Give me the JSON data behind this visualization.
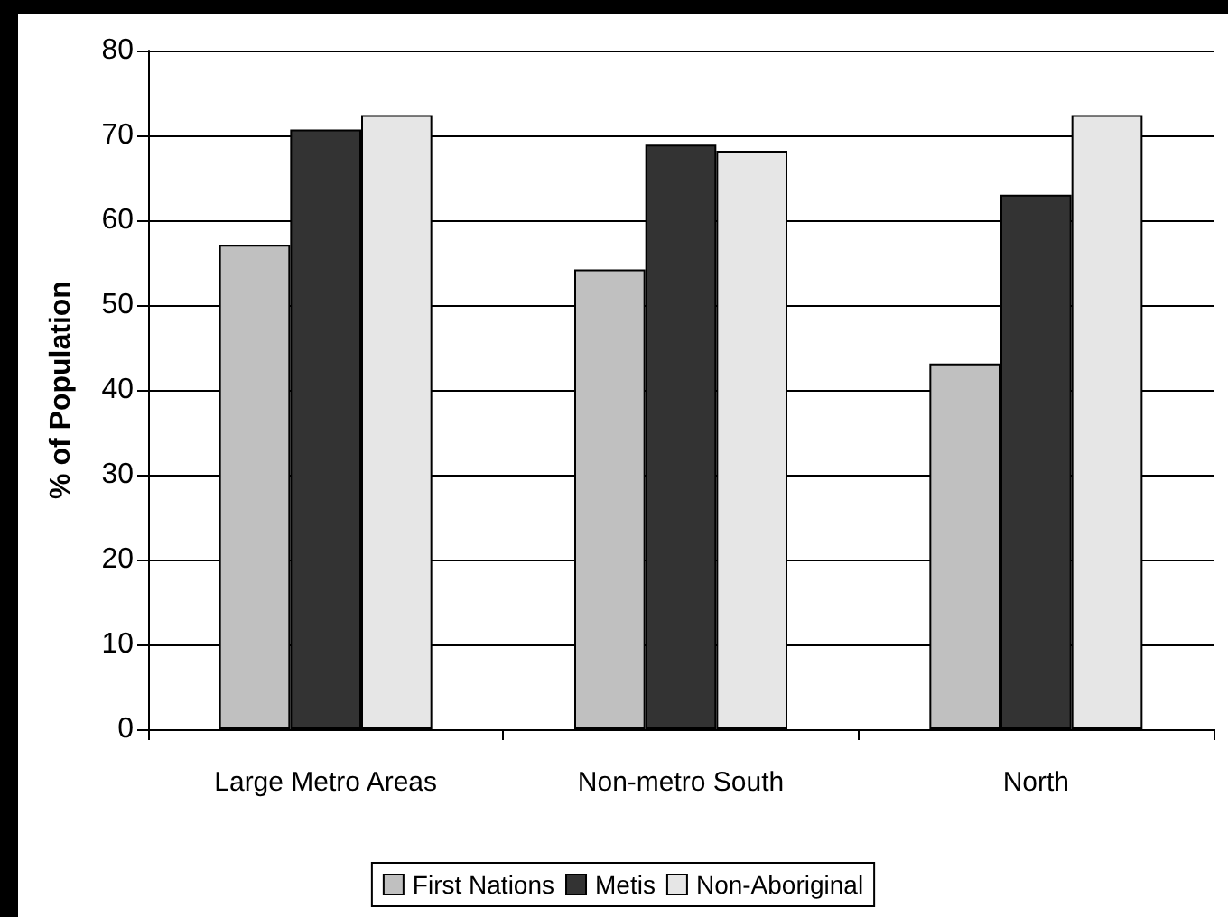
{
  "chart_data": {
    "type": "bar",
    "ylabel": "% of Population",
    "categories": [
      "Large Metro Areas",
      "Non-metro South",
      "North"
    ],
    "series": [
      {
        "name": "First Nations",
        "color": "#c0c0c0",
        "values": [
          57.1,
          54.2,
          43.1
        ]
      },
      {
        "name": "Metis",
        "color": "#333333",
        "values": [
          70.7,
          68.9,
          63.0
        ]
      },
      {
        "name": "Non-Aboriginal",
        "color": "#e6e6e6",
        "values": [
          72.4,
          68.2,
          72.4
        ]
      }
    ],
    "ylim": [
      0,
      80
    ],
    "yticks": [
      0,
      10,
      20,
      30,
      40,
      50,
      60,
      70,
      80
    ],
    "grid": "y",
    "legend": "bottom"
  }
}
